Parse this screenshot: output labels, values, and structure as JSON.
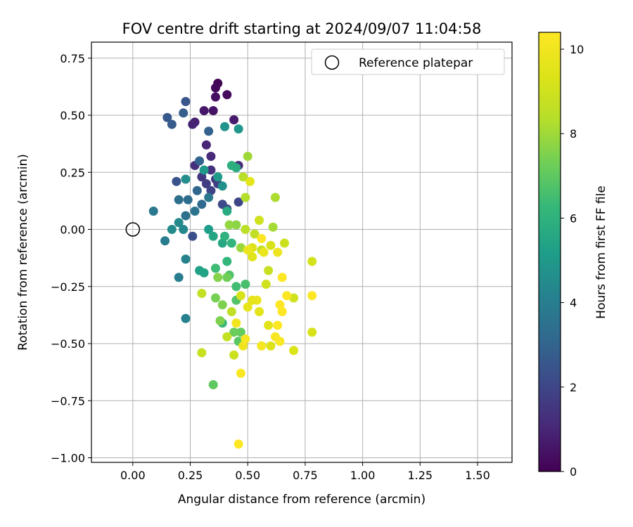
{
  "chart_data": {
    "type": "scatter",
    "title": "FOV centre drift starting at 2024/09/07 11:04:58",
    "xlabel": "Angular distance from reference (arcmin)",
    "ylabel": "Rotation from reference (arcmin)",
    "xlim": [
      -0.18,
      1.65
    ],
    "ylim": [
      -1.02,
      0.82
    ],
    "xticks": [
      "0.00",
      "0.25",
      "0.50",
      "0.75",
      "1.00",
      "1.25",
      "1.50"
    ],
    "yticks": [
      "0.75",
      "0.50",
      "0.25",
      "0.00",
      "−0.25",
      "−0.50",
      "−0.75",
      "−1.00"
    ],
    "grid": true,
    "legend": {
      "placement": "upper right",
      "entries": [
        "Reference platepar"
      ]
    },
    "colorbar": {
      "label": "Hours from first FF file",
      "range": [
        0,
        10.4
      ],
      "ticks": [
        "0",
        "2",
        "4",
        "6",
        "8",
        "10"
      ],
      "colormap": "viridis"
    },
    "reference_point": {
      "x": 0.0,
      "y": 0.0
    },
    "points": [
      [
        0.37,
        0.64,
        0.1
      ],
      [
        0.36,
        0.62,
        0.2
      ],
      [
        0.41,
        0.59,
        0.3
      ],
      [
        0.36,
        0.58,
        0.4
      ],
      [
        0.35,
        0.52,
        0.5
      ],
      [
        0.31,
        0.52,
        0.6
      ],
      [
        0.44,
        0.48,
        0.7
      ],
      [
        0.27,
        0.47,
        0.8
      ],
      [
        0.26,
        0.46,
        0.9
      ],
      [
        0.32,
        0.37,
        1.0
      ],
      [
        0.34,
        0.32,
        1.1
      ],
      [
        0.46,
        0.28,
        1.2
      ],
      [
        0.27,
        0.28,
        1.3
      ],
      [
        0.34,
        0.26,
        1.4
      ],
      [
        0.3,
        0.23,
        1.5
      ],
      [
        0.36,
        0.22,
        1.6
      ],
      [
        0.32,
        0.2,
        1.7
      ],
      [
        0.37,
        0.2,
        1.8
      ],
      [
        0.34,
        0.17,
        1.9
      ],
      [
        0.46,
        0.12,
        2.0
      ],
      [
        0.39,
        0.11,
        2.1
      ],
      [
        0.41,
        0.09,
        2.2
      ],
      [
        0.26,
        -0.03,
        2.3
      ],
      [
        0.19,
        0.21,
        2.4
      ],
      [
        0.23,
        0.56,
        2.5
      ],
      [
        0.15,
        0.49,
        2.6
      ],
      [
        0.17,
        0.46,
        2.7
      ],
      [
        0.22,
        0.51,
        2.8
      ],
      [
        0.33,
        0.43,
        2.9
      ],
      [
        0.29,
        0.3,
        3.0
      ],
      [
        0.28,
        0.17,
        3.1
      ],
      [
        0.3,
        0.11,
        3.2
      ],
      [
        0.24,
        0.13,
        3.3
      ],
      [
        0.2,
        0.13,
        3.4
      ],
      [
        0.23,
        0.06,
        3.5
      ],
      [
        0.27,
        0.08,
        3.6
      ],
      [
        0.33,
        0.14,
        3.7
      ],
      [
        0.09,
        0.08,
        3.8
      ],
      [
        0.14,
        -0.05,
        3.9
      ],
      [
        0.2,
        -0.21,
        4.0
      ],
      [
        0.23,
        -0.39,
        4.1
      ],
      [
        0.23,
        -0.13,
        4.2
      ],
      [
        0.22,
        0.0,
        4.3
      ],
      [
        0.2,
        0.03,
        4.4
      ],
      [
        0.17,
        0.0,
        4.5
      ],
      [
        0.23,
        0.22,
        4.6
      ],
      [
        0.39,
        0.19,
        4.7
      ],
      [
        0.4,
        0.45,
        4.8
      ],
      [
        0.46,
        0.44,
        4.9
      ],
      [
        0.31,
        0.26,
        5.0
      ],
      [
        0.37,
        0.23,
        5.1
      ],
      [
        0.33,
        0.0,
        5.2
      ],
      [
        0.29,
        -0.18,
        5.3
      ],
      [
        0.31,
        -0.19,
        5.4
      ],
      [
        0.35,
        -0.03,
        5.5
      ],
      [
        0.39,
        -0.06,
        5.6
      ],
      [
        0.41,
        0.08,
        5.7
      ],
      [
        0.45,
        0.27,
        5.8
      ],
      [
        0.43,
        0.28,
        5.9
      ],
      [
        0.4,
        -0.03,
        6.0
      ],
      [
        0.43,
        -0.06,
        6.1
      ],
      [
        0.41,
        -0.14,
        6.2
      ],
      [
        0.39,
        -0.41,
        6.3
      ],
      [
        0.36,
        -0.17,
        6.4
      ],
      [
        0.45,
        -0.25,
        6.5
      ],
      [
        0.49,
        -0.24,
        6.6
      ],
      [
        0.42,
        -0.2,
        6.7
      ],
      [
        0.45,
        -0.31,
        6.8
      ],
      [
        0.46,
        -0.49,
        6.9
      ],
      [
        0.35,
        -0.68,
        7.0
      ],
      [
        0.47,
        -0.45,
        7.1
      ],
      [
        0.44,
        -0.45,
        7.2
      ],
      [
        0.41,
        -0.21,
        7.3
      ],
      [
        0.36,
        -0.3,
        7.4
      ],
      [
        0.39,
        -0.33,
        7.5
      ],
      [
        0.37,
        -0.21,
        7.6
      ],
      [
        0.45,
        0.02,
        7.7
      ],
      [
        0.42,
        0.02,
        7.8
      ],
      [
        0.47,
        -0.08,
        7.9
      ],
      [
        0.5,
        0.32,
        8.0
      ],
      [
        0.61,
        0.01,
        8.1
      ],
      [
        0.62,
        0.14,
        8.2
      ],
      [
        0.49,
        0.14,
        8.3
      ],
      [
        0.48,
        0.23,
        8.4
      ],
      [
        0.49,
        0.0,
        8.5
      ],
      [
        0.53,
        -0.02,
        8.6
      ],
      [
        0.56,
        -0.09,
        8.7
      ],
      [
        0.59,
        -0.18,
        8.8
      ],
      [
        0.66,
        -0.06,
        8.9
      ],
      [
        0.7,
        -0.3,
        9.0
      ],
      [
        0.78,
        -0.14,
        9.1
      ],
      [
        0.78,
        -0.45,
        9.2
      ],
      [
        0.7,
        -0.53,
        9.3
      ],
      [
        0.6,
        -0.51,
        9.4
      ],
      [
        0.59,
        -0.42,
        9.5
      ],
      [
        0.55,
        -0.36,
        9.6
      ],
      [
        0.5,
        -0.34,
        9.7
      ],
      [
        0.54,
        -0.31,
        9.8
      ],
      [
        0.48,
        -0.51,
        9.9
      ],
      [
        0.45,
        -0.41,
        10.0
      ],
      [
        0.56,
        -0.51,
        10.1
      ],
      [
        0.62,
        -0.47,
        10.2
      ],
      [
        0.64,
        -0.49,
        10.3
      ],
      [
        0.63,
        -0.42,
        10.35
      ],
      [
        0.65,
        -0.36,
        10.4
      ],
      [
        0.64,
        -0.33,
        10.4
      ],
      [
        0.67,
        -0.29,
        10.3
      ],
      [
        0.78,
        -0.29,
        10.4
      ],
      [
        0.65,
        -0.21,
        10.4
      ],
      [
        0.56,
        -0.04,
        10.4
      ],
      [
        0.46,
        -0.94,
        10.4
      ],
      [
        0.47,
        -0.63,
        10.3
      ],
      [
        0.52,
        -0.08,
        9.4
      ],
      [
        0.55,
        0.04,
        9.0
      ],
      [
        0.51,
        0.21,
        9.6
      ],
      [
        0.57,
        -0.1,
        9.8
      ],
      [
        0.6,
        -0.07,
        9.2
      ],
      [
        0.63,
        -0.1,
        9.9
      ],
      [
        0.58,
        -0.24,
        9.0
      ],
      [
        0.52,
        -0.12,
        9.5
      ],
      [
        0.5,
        -0.09,
        9.8
      ],
      [
        0.47,
        -0.29,
        9.2
      ],
      [
        0.52,
        -0.31,
        9.7
      ],
      [
        0.49,
        -0.48,
        10.2
      ],
      [
        0.43,
        -0.36,
        8.6
      ],
      [
        0.41,
        -0.47,
        8.7
      ],
      [
        0.44,
        -0.55,
        8.9
      ],
      [
        0.38,
        -0.4,
        7.5
      ],
      [
        0.3,
        -0.28,
        8.7
      ],
      [
        0.3,
        -0.54,
        8.8
      ]
    ]
  }
}
